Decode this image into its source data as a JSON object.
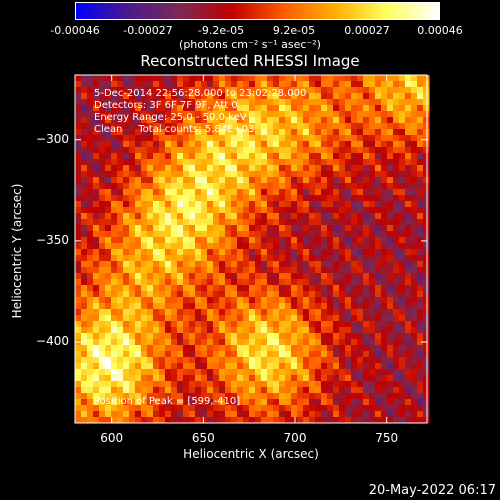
{
  "chart_data": {
    "type": "heatmap",
    "title": "Reconstructed RHESSI Image",
    "xlabel": "Heliocentric X (arcsec)",
    "ylabel": "Heliocentric Y (arcsec)",
    "xlim": [
      580,
      772
    ],
    "ylim": [
      -440,
      -268
    ],
    "xticks": [
      600,
      650,
      700,
      750
    ],
    "yticks": [
      -300,
      -350,
      -400
    ],
    "colorbar": {
      "range": [
        -0.00046,
        0.00046
      ],
      "tick_labels": [
        "-0.00046",
        "-0.00027",
        "-9.2e-05",
        "9.2e-05",
        "0.00027",
        "0.00046"
      ],
      "units": "(photons cm⁻² s⁻¹ asec⁻²)",
      "colormap": [
        "#0000ff",
        "#4a1a8c",
        "#7a2a55",
        "#c00000",
        "#ff5a00",
        "#ffb000",
        "#ffff60",
        "#ffffff"
      ]
    },
    "annotations": [
      "5-Dec-2014 22:56:28.000 to 23:02:28.000",
      "Detectors: 3F 6F 7F 9F, Att 0",
      "Energy Range: 25.0 - 50.0 keV",
      "Clean     Total counts: 5.84E+03"
    ],
    "peak_label": "Position of Peak = [599,-410]",
    "bright_regions": [
      {
        "x": 597,
        "y": -412,
        "value": 0.00046
      },
      {
        "x": 685,
        "y": -405,
        "value": 0.0004
      },
      {
        "x": 640,
        "y": -335,
        "value": 0.00035
      },
      {
        "x": 668,
        "y": -300,
        "value": 0.0003
      },
      {
        "x": 765,
        "y": -272,
        "value": 0.00034
      },
      {
        "x": 705,
        "y": -290,
        "value": 0.00022
      },
      {
        "x": 615,
        "y": -365,
        "value": 0.0002
      }
    ]
  },
  "footer": {
    "date": "20-May-2022 06:17"
  }
}
